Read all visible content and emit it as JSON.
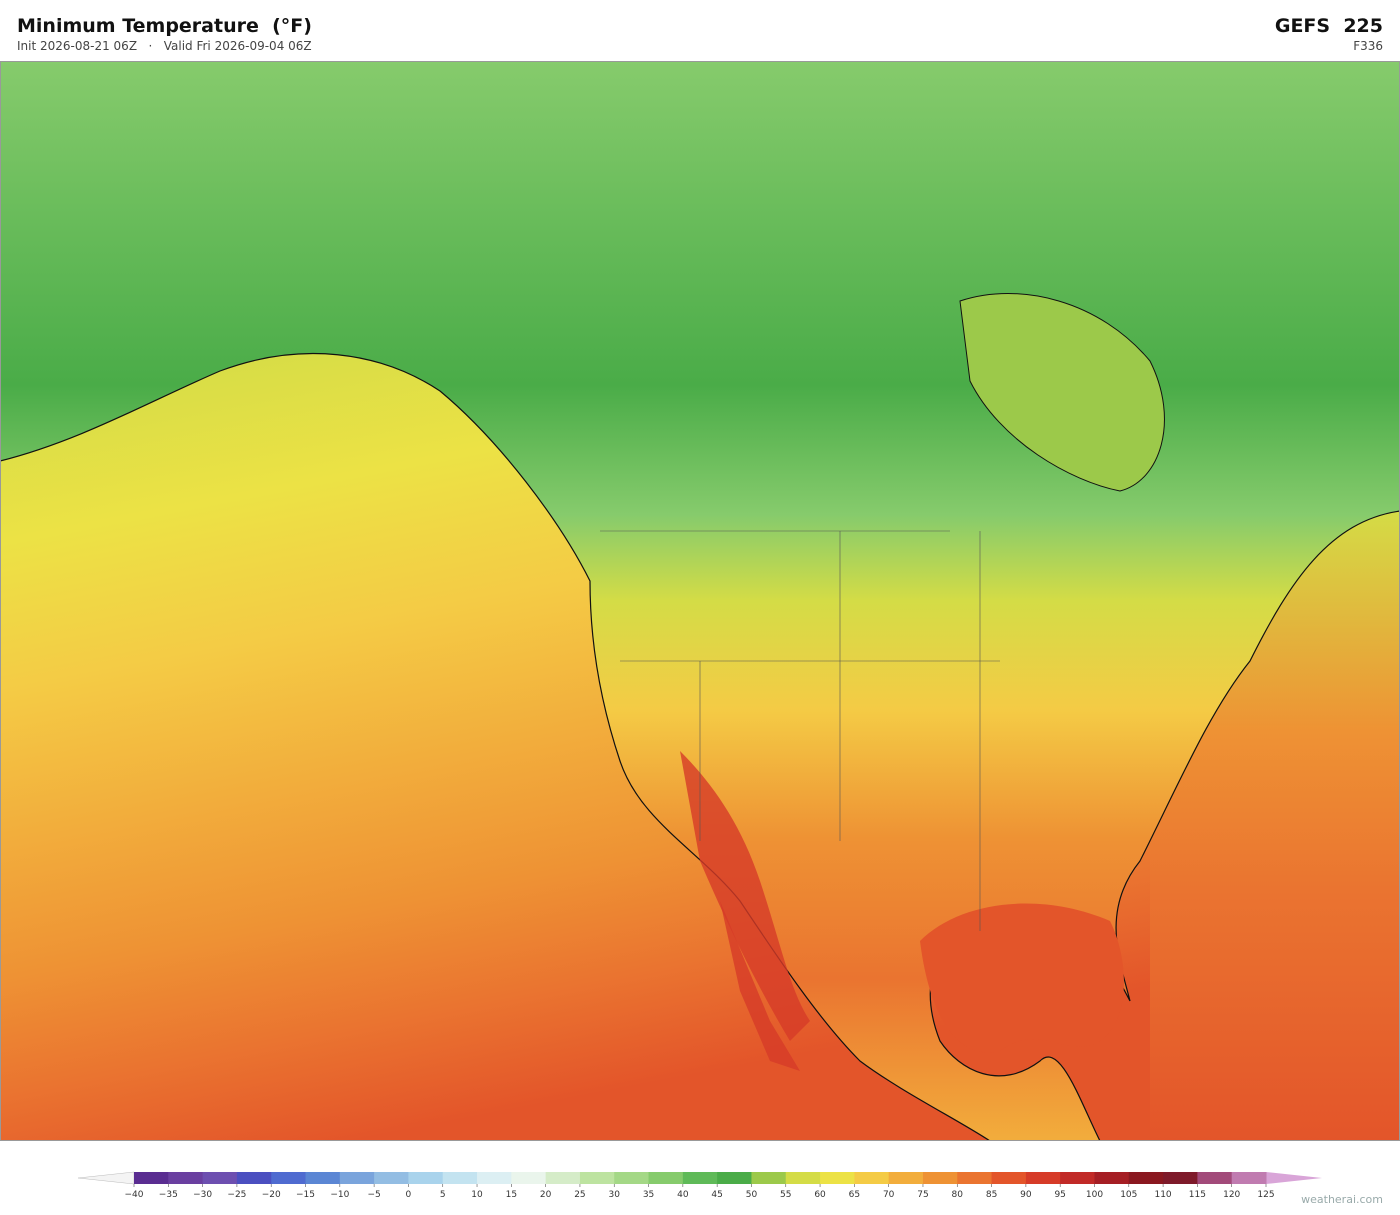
{
  "header": {
    "title": "Minimum Temperature  (°F)",
    "subtitle": "Init 2026-08-21 06Z   ·   Valid Fri 2026-09-04 06Z",
    "model": "GEFS  225",
    "forecast_hour": "F336"
  },
  "colorbar": {
    "ticks": [
      {
        "value": -40,
        "label": "−40"
      },
      {
        "value": -35,
        "label": "−35"
      },
      {
        "value": -30,
        "label": "−30"
      },
      {
        "value": -25,
        "label": "−25"
      },
      {
        "value": -20,
        "label": "−20"
      },
      {
        "value": -15,
        "label": "−15"
      },
      {
        "value": -10,
        "label": "−10"
      },
      {
        "value": -5,
        "label": "−5"
      },
      0,
      5,
      10,
      15,
      20,
      25,
      30,
      35,
      40,
      45,
      50,
      55,
      60,
      65,
      70,
      75,
      80,
      85,
      90,
      95,
      100,
      105,
      110,
      115,
      120,
      125
    ],
    "under_color": "#f4f4f4",
    "over_color": "#d9a5d8",
    "colors": [
      "#5a2d91",
      "#6a3fa0",
      "#6d4fb0",
      "#4b4fc0",
      "#4f6bd0",
      "#5b86d4",
      "#7aa4dc",
      "#93bde3",
      "#a9d3ec",
      "#c3e3f0",
      "#dceff3",
      "#eaf5ec",
      "#d5ecc8",
      "#bde3a0",
      "#a4d886",
      "#86cb6c",
      "#5fba58",
      "#4aac48",
      "#9cc94a",
      "#d4dc46",
      "#ece245",
      "#f4cb45",
      "#f2ad3c",
      "#ee9234",
      "#ea7430",
      "#e3552a",
      "#d63b28",
      "#c12a27",
      "#a51e24",
      "#8a1820",
      "#7e1a2a",
      "#a24a7a",
      "#c07bb0"
    ]
  },
  "watermark": "weatherai.com"
}
